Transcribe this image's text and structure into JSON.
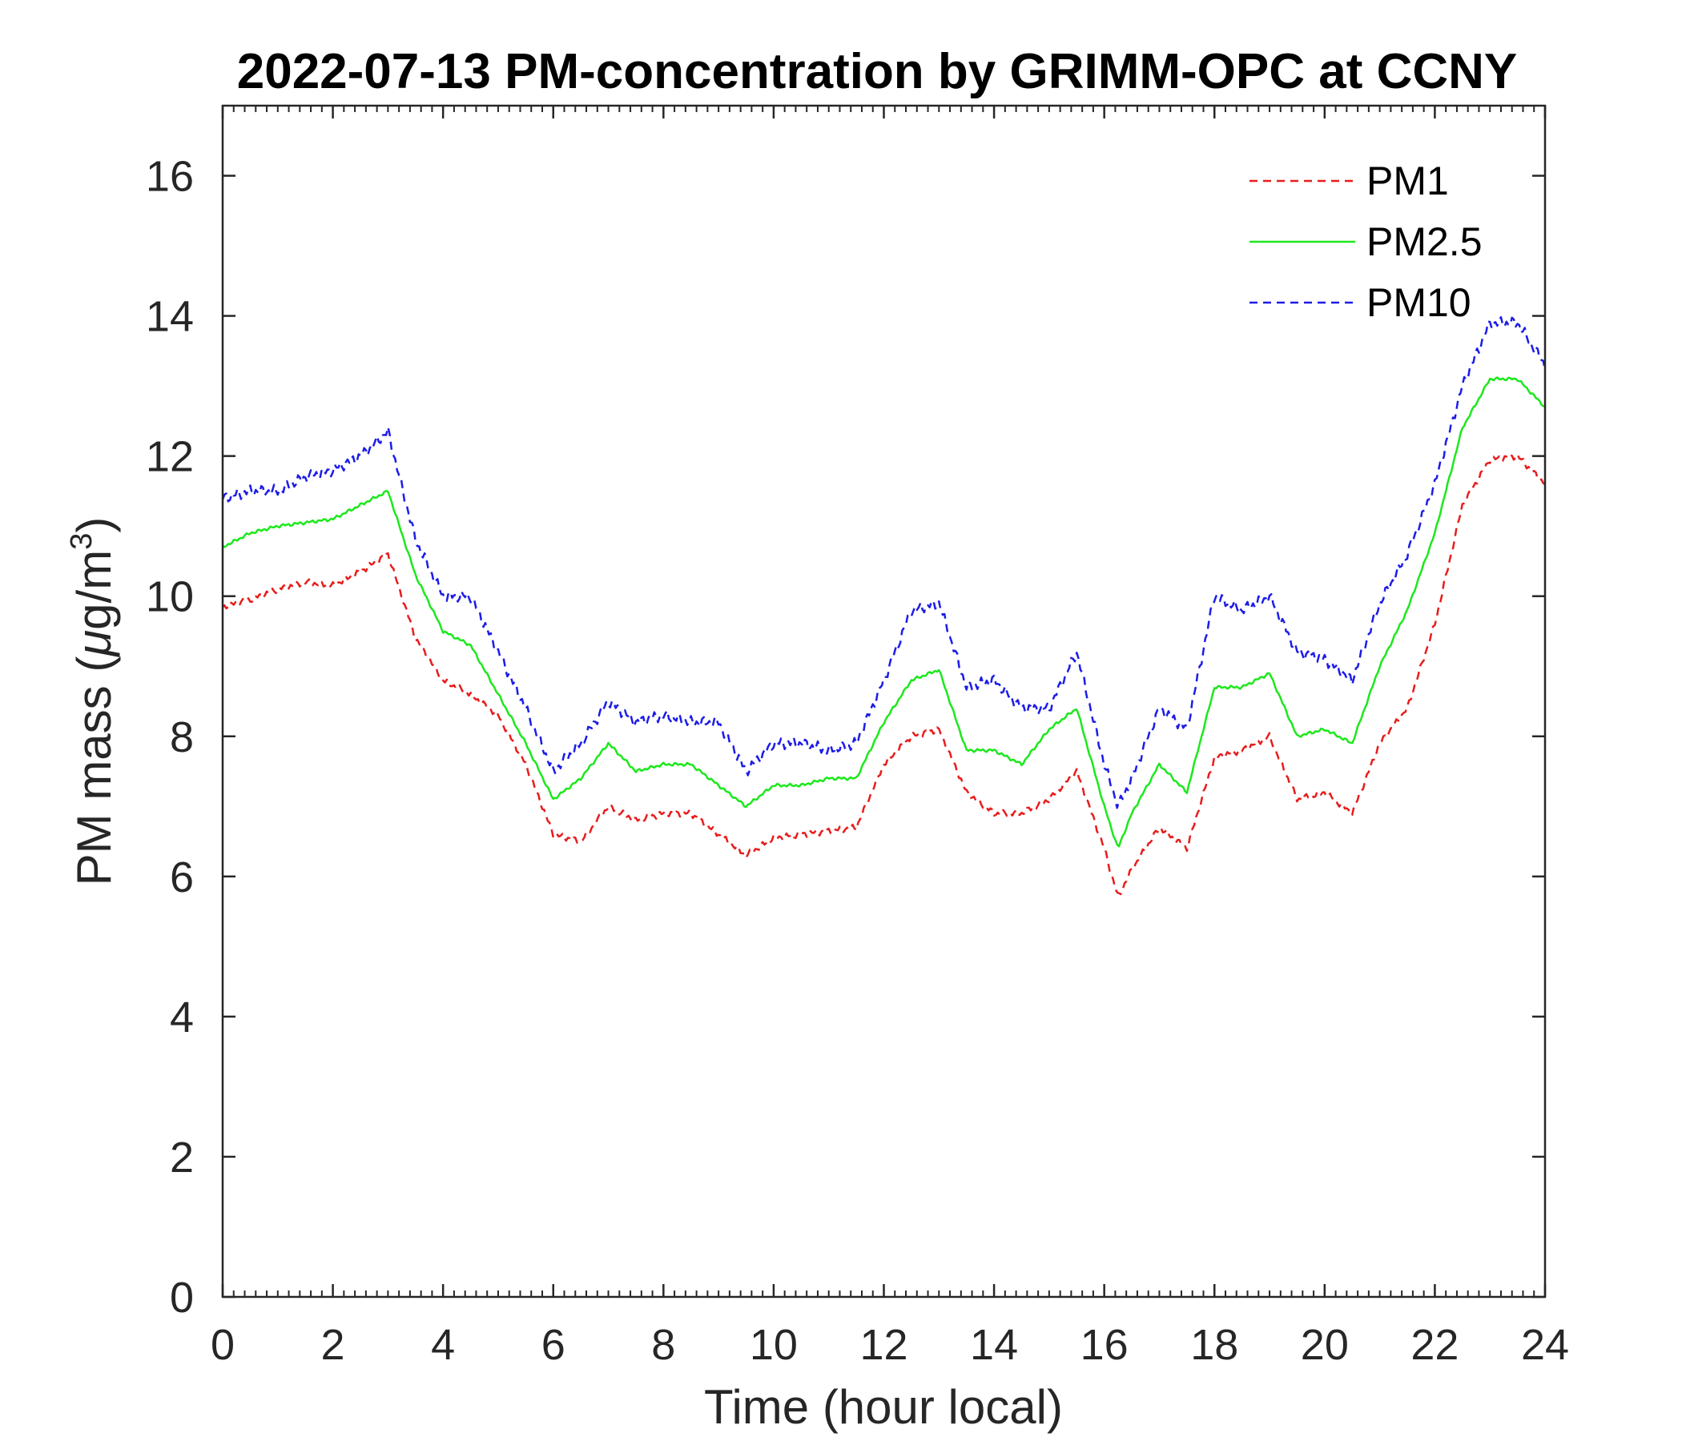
{
  "chart_data": {
    "type": "line",
    "title": "2022-07-13 PM-concentration by GRIMM-OPC at CCNY",
    "xlabel": "Time (hour local)",
    "ylabel": {
      "prefix": "PM mass (",
      "mu": "μ",
      "unit": "g/m",
      "exp": "3",
      "suffix": ")"
    },
    "xlim": [
      0,
      24
    ],
    "ylim": [
      0,
      17
    ],
    "xticks": [
      0,
      2,
      4,
      6,
      8,
      10,
      12,
      14,
      16,
      18,
      20,
      22,
      24
    ],
    "yticks": [
      0,
      2,
      4,
      6,
      8,
      10,
      12,
      14,
      16
    ],
    "legend_position": "top-right",
    "x": [
      0,
      0.5,
      1,
      1.5,
      2,
      2.5,
      3,
      3.5,
      4,
      4.5,
      5,
      5.5,
      6,
      6.5,
      7,
      7.5,
      8,
      8.5,
      9,
      9.5,
      10,
      10.5,
      11,
      11.5,
      12,
      12.5,
      13,
      13.5,
      14,
      14.5,
      15,
      15.5,
      16,
      16.25,
      16.5,
      17,
      17.5,
      18,
      18.5,
      19,
      19.5,
      20,
      20.5,
      21,
      21.5,
      22,
      22.5,
      23,
      23.5,
      24
    ],
    "series": [
      {
        "name": "PM1",
        "color": "#e81c1c",
        "dash": "dashed",
        "values": [
          9.85,
          9.95,
          10.1,
          10.2,
          10.15,
          10.35,
          10.6,
          9.4,
          8.8,
          8.6,
          8.3,
          7.6,
          6.6,
          6.5,
          7.0,
          6.8,
          6.9,
          6.9,
          6.6,
          6.3,
          6.55,
          6.6,
          6.65,
          6.7,
          7.6,
          8.0,
          8.1,
          7.2,
          6.9,
          6.9,
          7.1,
          7.5,
          6.4,
          5.7,
          6.1,
          6.7,
          6.4,
          7.7,
          7.8,
          8.0,
          7.1,
          7.2,
          6.9,
          7.9,
          8.4,
          9.6,
          11.3,
          11.95,
          12.0,
          11.6
        ]
      },
      {
        "name": "PM2.5",
        "color": "#1ce81c",
        "dash": "solid",
        "values": [
          10.7,
          10.9,
          11.0,
          11.05,
          11.1,
          11.3,
          11.5,
          10.3,
          9.5,
          9.3,
          8.6,
          7.9,
          7.1,
          7.4,
          7.9,
          7.5,
          7.6,
          7.6,
          7.3,
          7.0,
          7.3,
          7.3,
          7.4,
          7.4,
          8.2,
          8.8,
          8.95,
          7.8,
          7.8,
          7.6,
          8.1,
          8.4,
          7.0,
          6.4,
          6.9,
          7.6,
          7.2,
          8.7,
          8.7,
          8.9,
          8.0,
          8.1,
          7.9,
          9.0,
          9.8,
          10.9,
          12.4,
          13.1,
          13.1,
          12.7
        ]
      },
      {
        "name": "PM10",
        "color": "#1c1ce8",
        "dash": "dashed",
        "values": [
          11.4,
          11.5,
          11.5,
          11.7,
          11.8,
          12.0,
          12.35,
          10.8,
          10.0,
          10.0,
          9.2,
          8.4,
          7.5,
          7.9,
          8.5,
          8.2,
          8.3,
          8.2,
          8.2,
          7.5,
          7.9,
          7.9,
          7.8,
          7.9,
          8.8,
          9.8,
          9.9,
          8.7,
          8.8,
          8.4,
          8.4,
          9.2,
          7.6,
          7.0,
          7.4,
          8.4,
          8.1,
          10.0,
          9.8,
          10.0,
          9.2,
          9.1,
          8.8,
          9.9,
          10.6,
          11.6,
          13.0,
          13.9,
          13.9,
          13.3
        ]
      }
    ]
  }
}
